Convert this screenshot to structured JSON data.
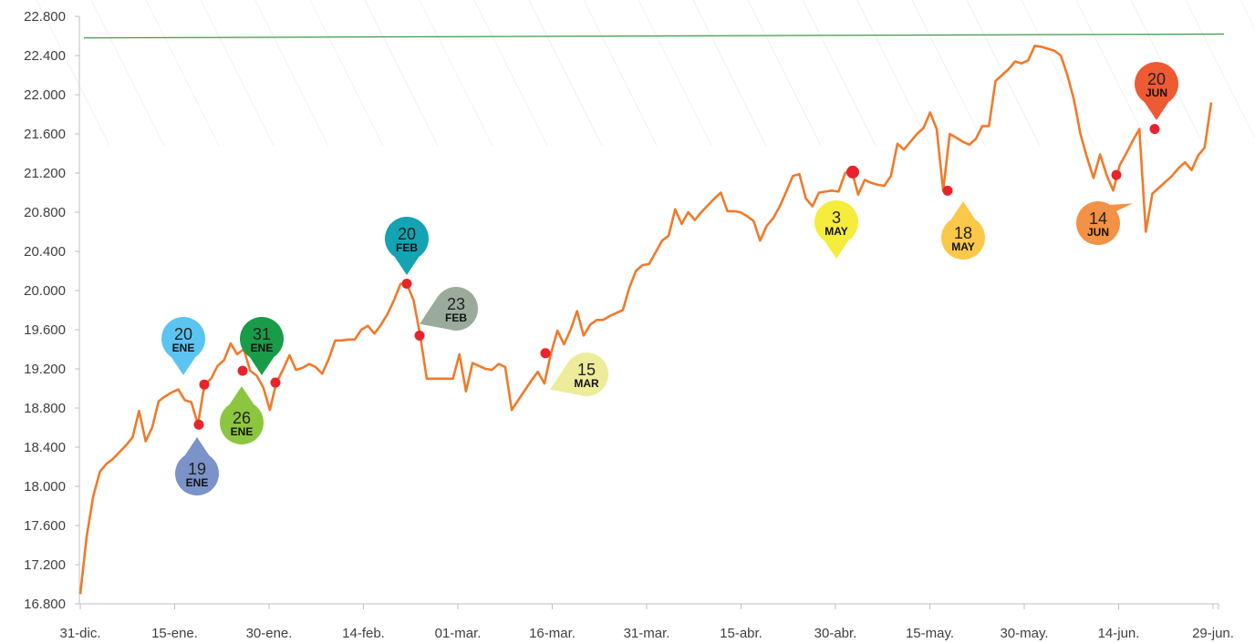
{
  "chart_data": {
    "type": "line",
    "title": "",
    "xlabel": "",
    "ylabel": "",
    "ylim": [
      16800,
      22800
    ],
    "y_ticks": [
      "16.800",
      "17.200",
      "17.600",
      "18.000",
      "18.400",
      "18.800",
      "19.200",
      "19.600",
      "20.000",
      "20.400",
      "20.800",
      "21.200",
      "21.600",
      "22.000",
      "22.400",
      "22.800"
    ],
    "x_ticks": [
      "31-dic.",
      "15-ene.",
      "30-ene.",
      "14-feb.",
      "01-mar.",
      "16-mar.",
      "31-mar.",
      "15-abr.",
      "30-abr.",
      "15-may.",
      "30-may.",
      "14-jun.",
      "29-jun."
    ],
    "grid": false,
    "legend": "none",
    "colors": {
      "line": "#f07a2a",
      "line_dip": "#d42b2b",
      "reference": "#3b9b4b",
      "marker": "#e8242a",
      "axis": "#bfbfbf"
    },
    "reference_line": {
      "start": 22580,
      "end": 22620
    },
    "series": [
      {
        "values": [
          16900,
          17500,
          17900,
          18150,
          18230,
          18280,
          18350,
          18420,
          18500,
          18770,
          18460,
          18600,
          18870,
          18920,
          18960,
          18990,
          18880,
          18860,
          18630,
          19040,
          19100,
          19230,
          19290,
          19460,
          19350,
          19400,
          19180,
          19130,
          19010,
          18780,
          19060,
          19190,
          19340,
          19190,
          19210,
          19250,
          19220,
          19150,
          19300,
          19490,
          19490,
          19500,
          19500,
          19600,
          19640,
          19560,
          19650,
          19760,
          19900,
          20070,
          20060,
          19900,
          19540,
          19100,
          19100,
          19100,
          19100,
          19100,
          19350,
          18970,
          19260,
          19230,
          19200,
          19190,
          19250,
          19220,
          18780,
          18880,
          18980,
          19080,
          19170,
          19050,
          19360,
          19590,
          19450,
          19600,
          19790,
          19540,
          19650,
          19700,
          19700,
          19740,
          19770,
          19800,
          20030,
          20200,
          20260,
          20270,
          20390,
          20510,
          20560,
          20830,
          20680,
          20800,
          20720,
          20800,
          20870,
          20940,
          21000,
          20810,
          20810,
          20800,
          20760,
          20710,
          20510,
          20660,
          20740,
          20860,
          21010,
          21170,
          21190,
          20940,
          20860,
          21000,
          21010,
          21020,
          21010,
          21200,
          21230,
          20980,
          21130,
          21100,
          21080,
          21070,
          21170,
          21500,
          21440,
          21520,
          21600,
          21660,
          21820,
          21650,
          21020,
          21600,
          21560,
          21520,
          21490,
          21550,
          21680,
          21680,
          22140,
          22200,
          22260,
          22340,
          22320,
          22350,
          22500,
          22490,
          22470,
          22450,
          22400,
          22200,
          21950,
          21600,
          21360,
          21150,
          21390,
          21180,
          21020,
          21280,
          21400,
          21530,
          21650,
          20600,
          20990,
          21050,
          21110,
          21170,
          21250,
          21310,
          21230,
          21380,
          21460,
          21920
        ]
      }
    ],
    "annotations": [
      {
        "day": "19",
        "month": "ENE",
        "value": 18630,
        "color": "#7b93c9"
      },
      {
        "day": "20",
        "month": "ENE",
        "value": 19040,
        "color": "#5bc4f1"
      },
      {
        "day": "26",
        "month": "ENE",
        "value": 19180,
        "color": "#8cc63f"
      },
      {
        "day": "31",
        "month": "ENE",
        "value": 19060,
        "color": "#1a9b48"
      },
      {
        "day": "20",
        "month": "FEB",
        "value": 20070,
        "color": "#13a3b3"
      },
      {
        "day": "23",
        "month": "FEB",
        "value": 19540,
        "color": "#9aab9c"
      },
      {
        "day": "15",
        "month": "MAR",
        "value": 19360,
        "color": "#ecec9a"
      },
      {
        "day": "3",
        "month": "MAY",
        "value": 21210,
        "color": "#f6ec3c"
      },
      {
        "day": "18",
        "month": "MAY",
        "value": 21020,
        "color": "#fbc84a"
      },
      {
        "day": "14",
        "month": "JUN",
        "value": 21180,
        "color": "#f39144"
      },
      {
        "day": "20",
        "month": "JUN",
        "value": 21650,
        "color": "#ee5a34"
      }
    ]
  }
}
